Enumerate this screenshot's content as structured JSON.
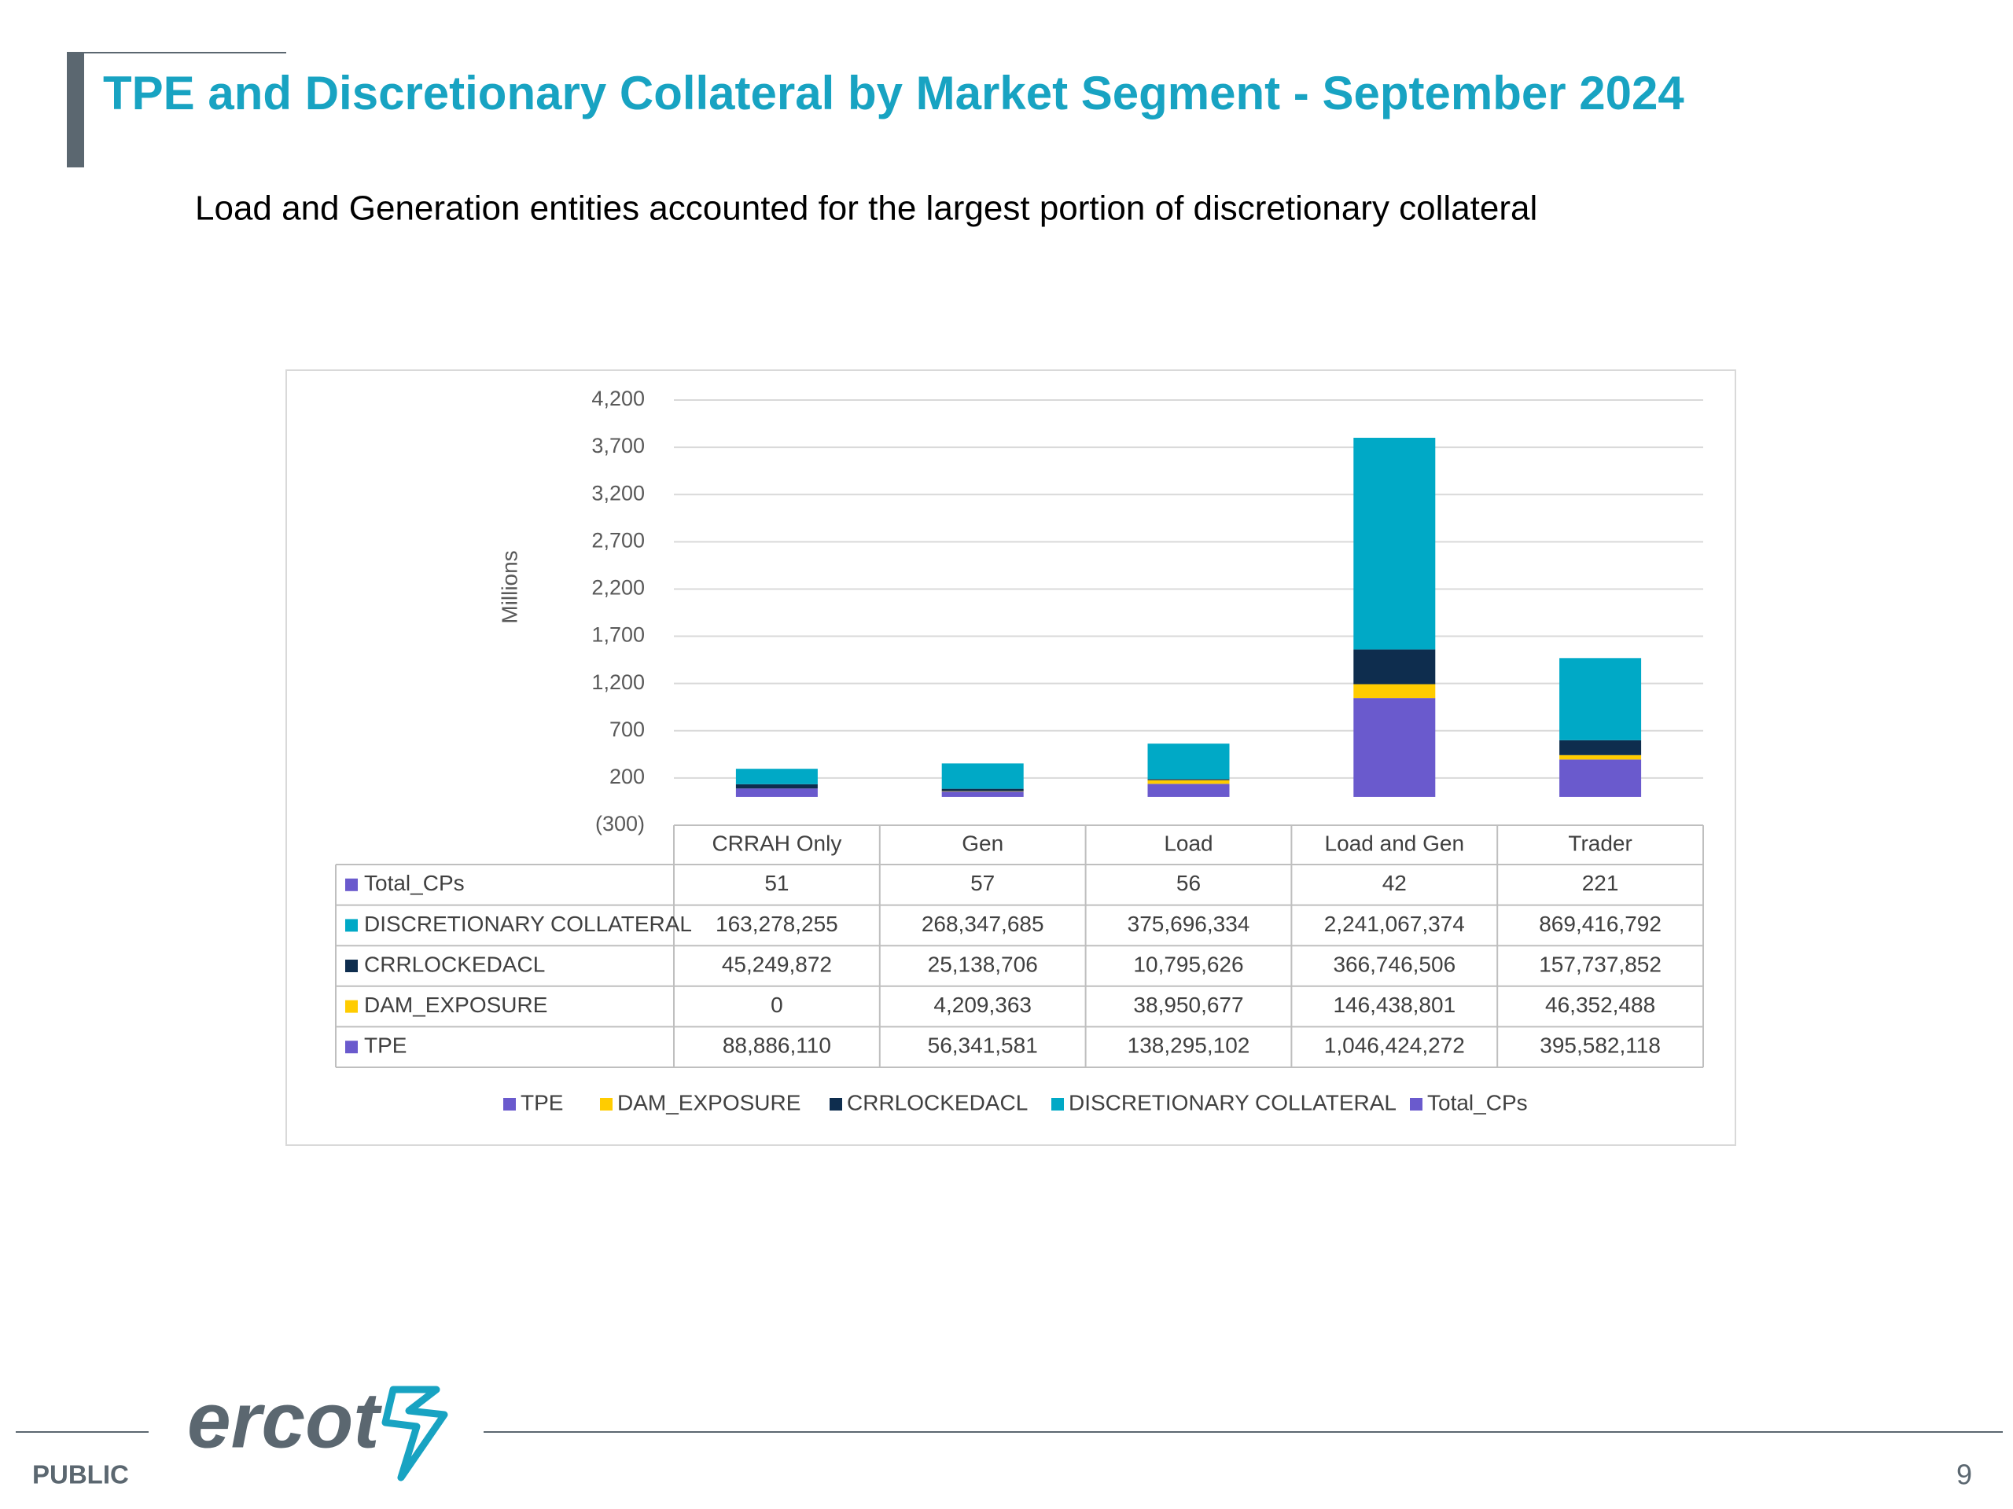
{
  "header": {
    "title": "TPE and Discretionary Collateral by Market Segment - September 2024",
    "subtitle": "Load and Generation entities accounted for the largest portion of discretionary collateral"
  },
  "chart_data": {
    "type": "bar",
    "stacked": true,
    "ylabel": "Millions",
    "categories": [
      "CRRAH Only",
      "Gen",
      "Load",
      "Load and Gen",
      "Trader"
    ],
    "series": [
      {
        "name": "TPE",
        "color": "#6a5acd",
        "values": [
          88.88611,
          56.341581,
          138.295102,
          1046.424272,
          395.582118
        ],
        "value_labels": [
          "88,886,110",
          "56,341,581",
          "138,295,102",
          "1,046,424,272",
          "395,582,118"
        ]
      },
      {
        "name": "DAM_EXPOSURE",
        "color": "#ffcc00",
        "values": [
          0,
          4.209363,
          38.950677,
          146.438801,
          46.352488
        ],
        "value_labels": [
          "0",
          "4,209,363",
          "38,950,677",
          "146,438,801",
          "46,352,488"
        ]
      },
      {
        "name": "CRRLOCKEDACL",
        "color": "#0e2d4e",
        "values": [
          45.249872,
          25.138706,
          10.795626,
          366.746506,
          157.737852
        ],
        "value_labels": [
          "45,249,872",
          "25,138,706",
          "10,795,626",
          "366,746,506",
          "157,737,852"
        ]
      },
      {
        "name": "DISCRETIONARY COLLATERAL",
        "color": "#00a9c6",
        "values": [
          163.278255,
          268.347685,
          375.696334,
          2241.067374,
          869.416792
        ],
        "value_labels": [
          "163,278,255",
          "268,347,685",
          "375,696,334",
          "2,241,067,374",
          "869,416,792"
        ]
      },
      {
        "name": "Total_CPs",
        "color": "#6a5acd",
        "values": [
          5.1e-05,
          5.7e-05,
          5.6e-05,
          4.2e-05,
          0.000221
        ],
        "value_labels": [
          "51",
          "57",
          "56",
          "42",
          "221"
        ]
      }
    ],
    "ylim": [
      -300,
      4200
    ],
    "yticks": [
      {
        "value": -300,
        "label": "(300)"
      },
      200,
      700,
      {
        "value": 1200,
        "label": "1,200"
      },
      {
        "value": 1700,
        "label": "1,700"
      },
      {
        "value": 2200,
        "label": "2,200"
      },
      {
        "value": 2700,
        "label": "2,700"
      },
      {
        "value": 3200,
        "label": "3,200"
      },
      {
        "value": 3700,
        "label": "3,700"
      },
      {
        "value": 4200,
        "label": "4,200"
      }
    ],
    "grid": true,
    "legend": "bottom"
  },
  "footer": {
    "logo": "ercot",
    "classification": "PUBLIC",
    "page_number": "9"
  }
}
